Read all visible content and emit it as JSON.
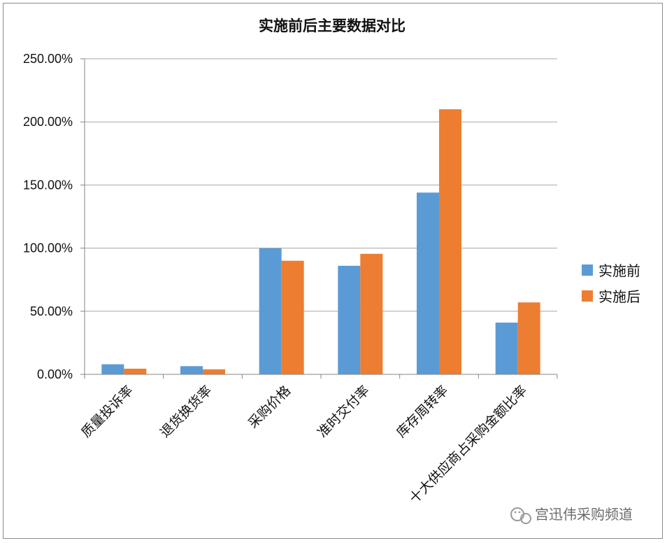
{
  "chart_data": {
    "type": "bar",
    "title": "实施前后主要数据对比",
    "categories": [
      "质量投诉率",
      "退货换货率",
      "采购价格",
      "准时交付率",
      "库存周转率",
      "十大供应商占采购金额比率"
    ],
    "series": [
      {
        "name": "实施前",
        "color": "#5b9bd5",
        "values": [
          8.0,
          6.5,
          100.0,
          86.0,
          144.0,
          41.0
        ]
      },
      {
        "name": "实施后",
        "color": "#ed7d31",
        "values": [
          4.5,
          4.0,
          90.0,
          95.5,
          210.0,
          57.0
        ]
      }
    ],
    "ylim": [
      0,
      250
    ],
    "yticks": [
      "0.00%",
      "50.00%",
      "100.00%",
      "150.00%",
      "200.00%",
      "250.00%"
    ],
    "grid": true,
    "legend": "right"
  },
  "watermark": {
    "text": "宫迅伟采购频道",
    "icon": "wechat-icon"
  }
}
